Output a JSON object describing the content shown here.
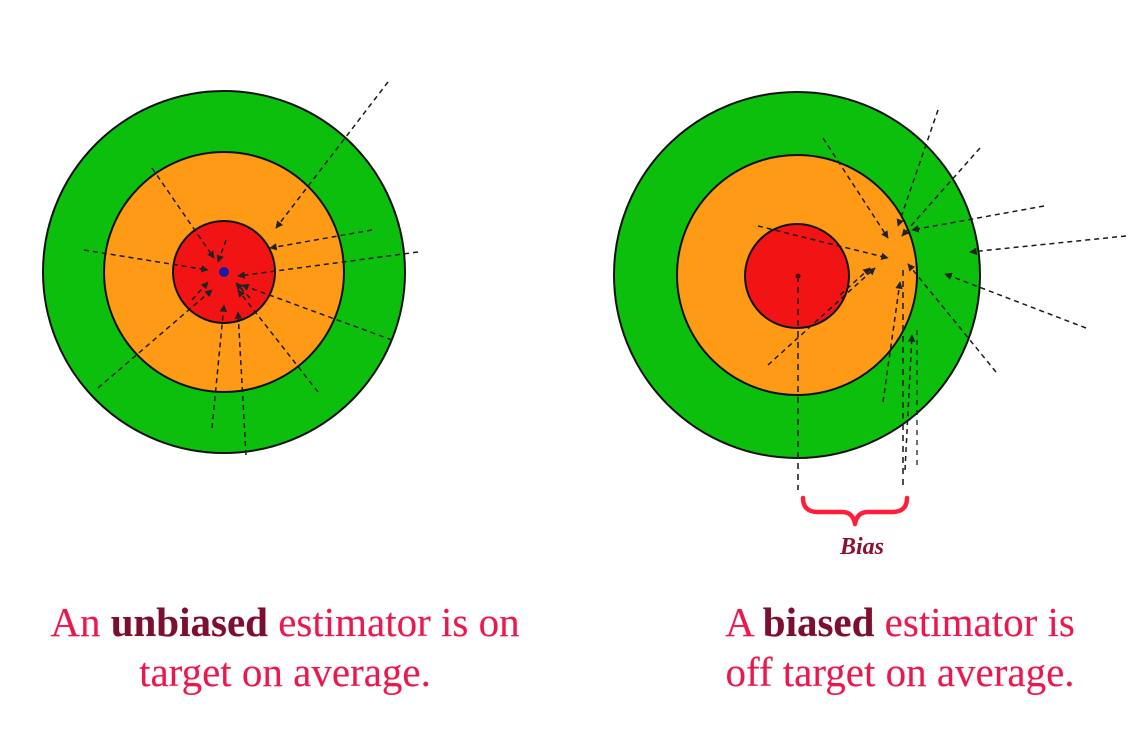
{
  "colors": {
    "outer_ring": "#0dbf0d",
    "middle_ring": "#ff9a17",
    "bullseye": "#f21414",
    "center_dot": "#1a1aa8",
    "caption_text": "#e8194f",
    "emphasis_text": "#7a1030",
    "bias_brace": "#ff1f3c"
  },
  "left_panel": {
    "caption": {
      "pre": "An ",
      "emphasis": "unbiased",
      "post": " estimator is on",
      "line2": "target on average."
    }
  },
  "right_panel": {
    "caption": {
      "pre": "A ",
      "emphasis": "biased",
      "post": " estimator is",
      "line2": "off target on average."
    },
    "bias_label": "Bias"
  }
}
